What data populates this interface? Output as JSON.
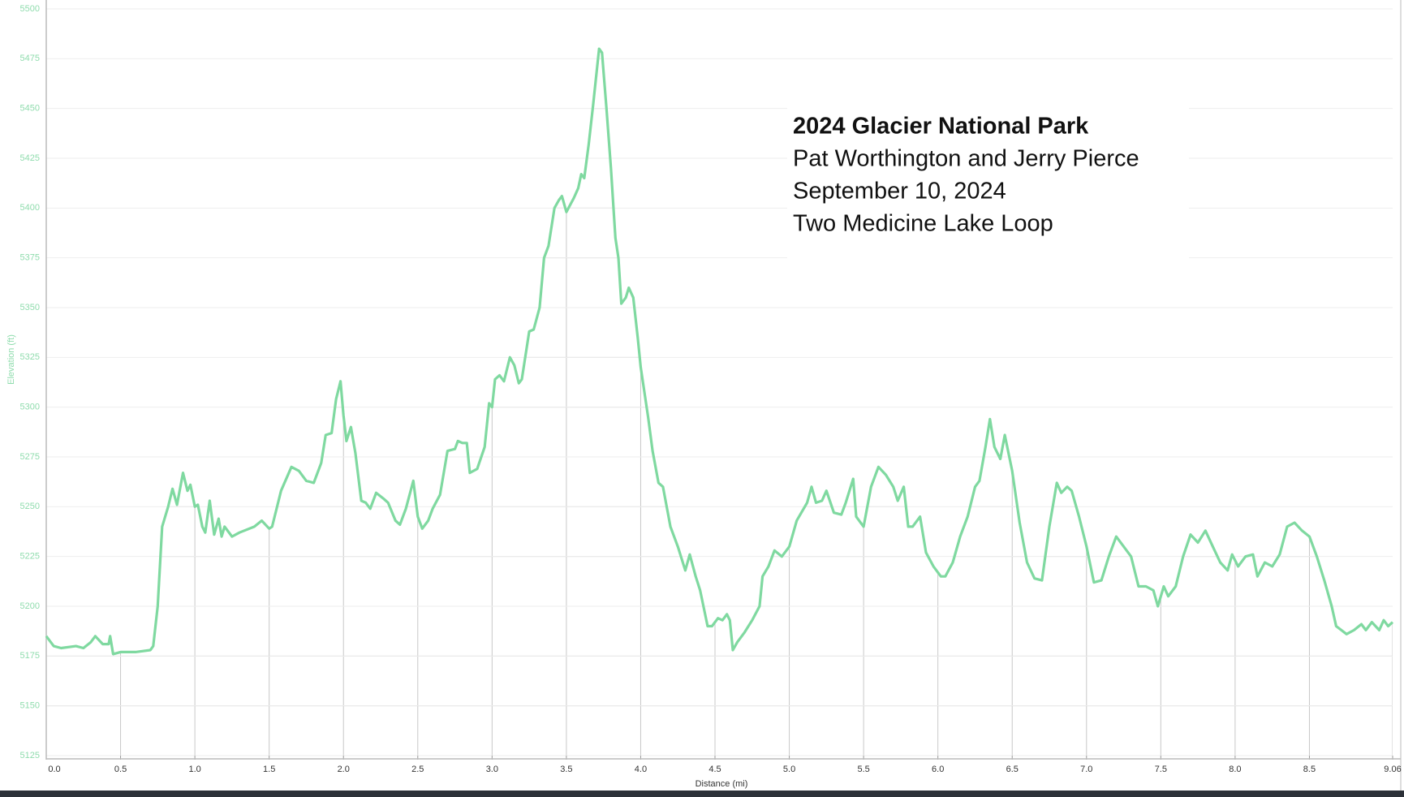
{
  "chart_data": {
    "type": "line",
    "annotation": {
      "title": "2024 Glacier National Park",
      "lines": [
        "Pat Worthington and Jerry Pierce",
        "September 10, 2024",
        "Two Medicine Lake Loop"
      ]
    },
    "x_label": "Distance (mi)",
    "y_label": "Elevation (ft)",
    "color": "#7fd9a0",
    "grid": true,
    "xlim": [
      0,
      9.06
    ],
    "ylim": [
      5125,
      5500
    ],
    "xticks": [
      {
        "value": 0,
        "label": "0.0"
      },
      0.5,
      {
        "value": 1,
        "label": "1.0"
      },
      1.5,
      {
        "value": 2,
        "label": "2.0"
      },
      2.5,
      {
        "value": 3,
        "label": "3.0"
      },
      3.5,
      {
        "value": 4,
        "label": "4.0"
      },
      4.5,
      {
        "value": 5,
        "label": "5.0"
      },
      5.5,
      {
        "value": 6,
        "label": "6.0"
      },
      6.5,
      {
        "value": 7,
        "label": "7.0"
      },
      7.5,
      {
        "value": 8,
        "label": "8.0"
      },
      8.5,
      9.06
    ],
    "yticks": [
      5125,
      5150,
      5175,
      5200,
      5225,
      5250,
      5275,
      5300,
      5325,
      5350,
      5375,
      5400,
      5425,
      5450,
      5475,
      5500
    ],
    "x": [
      0,
      0.05,
      0.1,
      0.2,
      0.25,
      0.3,
      0.33,
      0.38,
      0.42,
      0.43,
      0.45,
      0.5,
      0.6,
      0.7,
      0.72,
      0.75,
      0.78,
      0.82,
      0.85,
      0.88,
      0.92,
      0.95,
      0.97,
      1.0,
      1.02,
      1.05,
      1.07,
      1.1,
      1.13,
      1.16,
      1.18,
      1.2,
      1.25,
      1.3,
      1.4,
      1.45,
      1.5,
      1.52,
      1.58,
      1.65,
      1.7,
      1.75,
      1.8,
      1.85,
      1.88,
      1.92,
      1.95,
      1.98,
      2.0,
      2.02,
      2.05,
      2.08,
      2.12,
      2.15,
      2.18,
      2.22,
      2.27,
      2.3,
      2.35,
      2.38,
      2.42,
      2.47,
      2.5,
      2.53,
      2.57,
      2.6,
      2.65,
      2.7,
      2.75,
      2.77,
      2.8,
      2.83,
      2.85,
      2.9,
      2.95,
      2.98,
      3.0,
      3.02,
      3.05,
      3.08,
      3.12,
      3.15,
      3.18,
      3.2,
      3.25,
      3.28,
      3.32,
      3.35,
      3.38,
      3.42,
      3.45,
      3.47,
      3.5,
      3.55,
      3.58,
      3.6,
      3.62,
      3.65,
      3.68,
      3.72,
      3.74,
      3.77,
      3.8,
      3.83,
      3.85,
      3.87,
      3.9,
      3.92,
      3.95,
      3.98,
      4.0,
      4.05,
      4.08,
      4.12,
      4.15,
      4.2,
      4.25,
      4.3,
      4.33,
      4.37,
      4.4,
      4.45,
      4.48,
      4.52,
      4.55,
      4.58,
      4.6,
      4.62,
      4.65,
      4.7,
      4.75,
      4.8,
      4.82,
      4.86,
      4.9,
      4.95,
      5.0,
      5.05,
      5.12,
      5.15,
      5.18,
      5.22,
      5.25,
      5.3,
      5.35,
      5.38,
      5.43,
      5.45,
      5.5,
      5.55,
      5.6,
      5.65,
      5.7,
      5.73,
      5.77,
      5.8,
      5.83,
      5.88,
      5.92,
      5.97,
      6.02,
      6.05,
      6.1,
      6.15,
      6.2,
      6.25,
      6.28,
      6.32,
      6.35,
      6.38,
      6.42,
      6.45,
      6.5,
      6.55,
      6.6,
      6.65,
      6.7,
      6.75,
      6.8,
      6.83,
      6.87,
      6.9,
      6.95,
      7.0,
      7.05,
      7.1,
      7.15,
      7.2,
      7.25,
      7.3,
      7.35,
      7.4,
      7.45,
      7.48,
      7.52,
      7.55,
      7.6,
      7.65,
      7.7,
      7.75,
      7.8,
      7.85,
      7.9,
      7.95,
      7.98,
      8.02,
      8.07,
      8.12,
      8.15,
      8.2,
      8.25,
      8.3,
      8.35,
      8.4,
      8.45,
      8.5,
      8.55,
      8.6,
      8.65,
      8.68,
      8.75,
      8.8,
      8.85,
      8.88,
      8.92,
      8.97,
      9.0,
      9.03,
      9.06
    ],
    "values": [
      5185,
      5180,
      5179,
      5180,
      5179,
      5182,
      5185,
      5181,
      5181,
      5185,
      5176,
      5177,
      5177,
      5178,
      5180,
      5200,
      5240,
      5250,
      5259,
      5251,
      5267,
      5258,
      5261,
      5250,
      5251,
      5240,
      5237,
      5253,
      5236,
      5244,
      5235,
      5240,
      5235,
      5237,
      5240,
      5243,
      5239,
      5240,
      5258,
      5270,
      5268,
      5263,
      5262,
      5272,
      5286,
      5287,
      5304,
      5313,
      5296,
      5283,
      5290,
      5277,
      5253,
      5252,
      5249,
      5257,
      5254,
      5252,
      5243,
      5241,
      5249,
      5263,
      5245,
      5239,
      5243,
      5249,
      5256,
      5278,
      5279,
      5283,
      5282,
      5282,
      5267,
      5269,
      5280,
      5302,
      5300,
      5314,
      5316,
      5313,
      5325,
      5321,
      5312,
      5314,
      5338,
      5339,
      5350,
      5375,
      5381,
      5400,
      5404,
      5406,
      5398,
      5405,
      5410,
      5417,
      5415,
      5432,
      5452,
      5480,
      5478,
      5450,
      5420,
      5385,
      5375,
      5352,
      5355,
      5360,
      5355,
      5335,
      5320,
      5295,
      5278,
      5262,
      5260,
      5240,
      5230,
      5218,
      5226,
      5215,
      5208,
      5190,
      5190,
      5194,
      5193,
      5196,
      5193,
      5178,
      5182,
      5187,
      5193,
      5200,
      5215,
      5220,
      5228,
      5225,
      5230,
      5243,
      5252,
      5260,
      5252,
      5253,
      5258,
      5247,
      5246,
      5252,
      5264,
      5245,
      5240,
      5260,
      5270,
      5266,
      5260,
      5253,
      5260,
      5240,
      5240,
      5245,
      5227,
      5220,
      5215,
      5215,
      5222,
      5235,
      5245,
      5260,
      5263,
      5280,
      5294,
      5280,
      5274,
      5286,
      5268,
      5242,
      5222,
      5214,
      5213,
      5240,
      5262,
      5257,
      5260,
      5258,
      5245,
      5230,
      5212,
      5213,
      5225,
      5235,
      5230,
      5225,
      5210,
      5210,
      5208,
      5200,
      5210,
      5205,
      5210,
      5225,
      5236,
      5232,
      5238,
      5230,
      5222,
      5218,
      5226,
      5220,
      5225,
      5226,
      5215,
      5222,
      5220,
      5226,
      5240,
      5242,
      5238,
      5235,
      5225,
      5213,
      5200,
      5190,
      5186,
      5188,
      5191,
      5188,
      5192,
      5188,
      5193,
      5190,
      5192
    ]
  }
}
